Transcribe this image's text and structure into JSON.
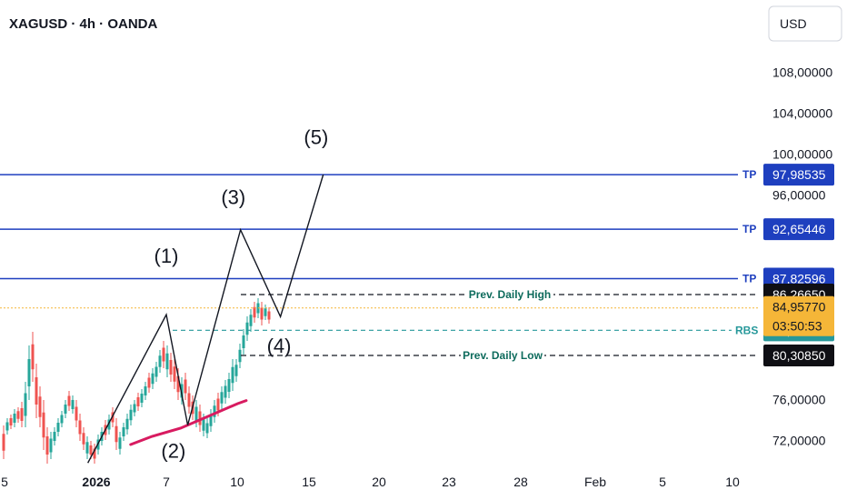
{
  "header": {
    "title": "XAGUSD · 4h · OANDA"
  },
  "currency_button": {
    "label": "USD"
  },
  "y_axis": {
    "ticks": [
      {
        "value": 108,
        "label": "108,00000"
      },
      {
        "value": 104,
        "label": "104,00000"
      },
      {
        "value": 100,
        "label": "100,00000"
      },
      {
        "value": 96,
        "label": "96,00000"
      },
      {
        "value": 76,
        "label": "76,00000"
      },
      {
        "value": 72,
        "label": "72,00000"
      }
    ]
  },
  "x_axis": {
    "ticks": [
      {
        "label": "5",
        "bold": false
      },
      {
        "label": "2026",
        "bold": true
      },
      {
        "label": "7",
        "bold": false
      },
      {
        "label": "10",
        "bold": false
      },
      {
        "label": "15",
        "bold": false
      },
      {
        "label": "20",
        "bold": false
      },
      {
        "label": "23",
        "bold": false
      },
      {
        "label": "28",
        "bold": false
      },
      {
        "label": "Feb",
        "bold": false
      },
      {
        "label": "5",
        "bold": false
      },
      {
        "label": "10",
        "bold": false
      }
    ]
  },
  "horizontal_lines": [
    {
      "price": 97.98535,
      "label": "TP",
      "tag": "97,98535",
      "color": "#1e3fbf",
      "style": "solid"
    },
    {
      "price": 92.65446,
      "label": "TP",
      "tag": "92,65446",
      "color": "#1e3fbf",
      "style": "solid"
    },
    {
      "price": 87.82596,
      "label": "TP",
      "tag": "87,82596",
      "color": "#1e3fbf",
      "style": "solid"
    },
    {
      "price": 86.2665,
      "label": "Prev. Daily High",
      "tag": "86,26650",
      "color": "#0d6b5c",
      "style": "dashed-black"
    },
    {
      "price": 82.77065,
      "label": "RBS",
      "tag": "82,77065",
      "color": "#26989a",
      "style": "dashed-teal"
    },
    {
      "price": 80.3085,
      "label": "Prev. Daily Low",
      "tag": "80,30850",
      "color": "#0d6b5c",
      "style": "dashed-black"
    }
  ],
  "current_price": {
    "price": 84.9577,
    "tag": "84,95770",
    "countdown": "03:50:53",
    "color": "#f5b638"
  },
  "wave_labels": [
    {
      "label": "(1)",
      "t": 7,
      "price": 89.4
    },
    {
      "label": "(2)",
      "t": 7.5,
      "price": 70.3
    },
    {
      "label": "(3)",
      "t": 11.7,
      "price": 95.1
    },
    {
      "label": "(4)",
      "t": 14.9,
      "price": 80.6
    },
    {
      "label": "(5)",
      "t": 17.5,
      "price": 101.0
    }
  ],
  "wave_path": [
    {
      "t": 1.5,
      "price": 69.8
    },
    {
      "t": 7.0,
      "price": 84.3
    },
    {
      "t": 8.5,
      "price": 73.5
    },
    {
      "t": 12.2,
      "price": 92.6
    },
    {
      "t": 15.0,
      "price": 84.1
    },
    {
      "t": 18.0,
      "price": 98.0
    }
  ],
  "moving_average": [
    {
      "t": 4.5,
      "price": 71.6
    },
    {
      "t": 6.0,
      "price": 72.4
    },
    {
      "t": 8.0,
      "price": 73.2
    },
    {
      "t": 10.0,
      "price": 74.4
    },
    {
      "t": 12.0,
      "price": 75.6
    },
    {
      "t": 12.6,
      "price": 75.9
    }
  ],
  "colors": {
    "bull": "#26a69a",
    "bear": "#ef5350",
    "tp_line": "#1e3fbf",
    "ma": "#d81b60",
    "current_price_line": "#f5b638",
    "dark_tag": "#0f0f14"
  }
}
